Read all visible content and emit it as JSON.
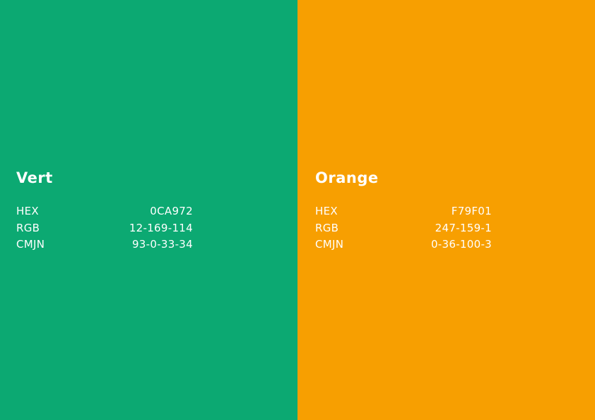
{
  "swatches": [
    {
      "name": "Vert",
      "color": "#0CA972",
      "specs": [
        {
          "label": "HEX",
          "value": "0CA972"
        },
        {
          "label": "RGB",
          "value": "12-169-114"
        },
        {
          "label": "CMJN",
          "value": "93-0-33-34"
        }
      ]
    },
    {
      "name": "Orange",
      "color": "#F79F01",
      "specs": [
        {
          "label": "HEX",
          "value": "F79F01"
        },
        {
          "label": "RGB",
          "value": "247-159-1"
        },
        {
          "label": "CMJN",
          "value": "0-36-100-3"
        }
      ]
    }
  ]
}
